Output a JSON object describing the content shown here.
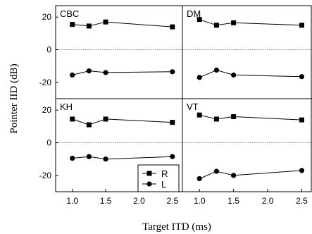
{
  "chart_data": {
    "type": "line",
    "layout": "2x2 panels, shared axes",
    "xlabel": "Target ITD (ms)",
    "ylabel": "Pointer IID (dB)",
    "xlim": [
      0.75,
      2.65
    ],
    "ylim": [
      -30,
      27
    ],
    "xticks": [
      "1.0",
      "1.5",
      "2.0",
      "2.5"
    ],
    "yticks": [
      "20",
      "0",
      "-20"
    ],
    "zero_reference_line": "dotted",
    "legend": {
      "placement": "bottom-right of lower-left panel",
      "entries": [
        {
          "label": "R",
          "marker": "square"
        },
        {
          "label": "L",
          "marker": "circle"
        }
      ]
    },
    "panels": [
      {
        "label": "CBC",
        "position": "top-left",
        "series": [
          {
            "name": "R",
            "marker": "square",
            "x": [
              1.0,
              1.25,
              1.5,
              2.5
            ],
            "y": [
              15.5,
              14.5,
              17,
              14
            ]
          },
          {
            "name": "L",
            "marker": "circle",
            "x": [
              1.0,
              1.25,
              1.5,
              2.5
            ],
            "y": [
              -15.5,
              -13,
              -14,
              -13.5
            ]
          }
        ]
      },
      {
        "label": "DM",
        "position": "top-right",
        "series": [
          {
            "name": "R",
            "marker": "square",
            "x": [
              1.0,
              1.25,
              1.5,
              2.5
            ],
            "y": [
              18.5,
              15,
              16.5,
              15
            ]
          },
          {
            "name": "L",
            "marker": "circle",
            "x": [
              1.0,
              1.25,
              1.5,
              2.5
            ],
            "y": [
              -17,
              -12.5,
              -15.5,
              -16.5
            ]
          }
        ]
      },
      {
        "label": "KH",
        "position": "bottom-left",
        "series": [
          {
            "name": "R",
            "marker": "square",
            "x": [
              1.0,
              1.25,
              1.5,
              2.5
            ],
            "y": [
              14.5,
              11,
              14.5,
              12.5
            ]
          },
          {
            "name": "L",
            "marker": "circle",
            "x": [
              1.0,
              1.25,
              1.5,
              2.5
            ],
            "y": [
              -9.5,
              -8.5,
              -10,
              -8.5
            ]
          }
        ]
      },
      {
        "label": "VT",
        "position": "bottom-right",
        "series": [
          {
            "name": "R",
            "marker": "square",
            "x": [
              1.0,
              1.25,
              1.5,
              2.5
            ],
            "y": [
              17,
              14.5,
              16,
              14
            ]
          },
          {
            "name": "L",
            "marker": "circle",
            "x": [
              1.0,
              1.25,
              1.5,
              2.5
            ],
            "y": [
              -22,
              -17.5,
              -20,
              -17
            ]
          }
        ]
      }
    ]
  }
}
